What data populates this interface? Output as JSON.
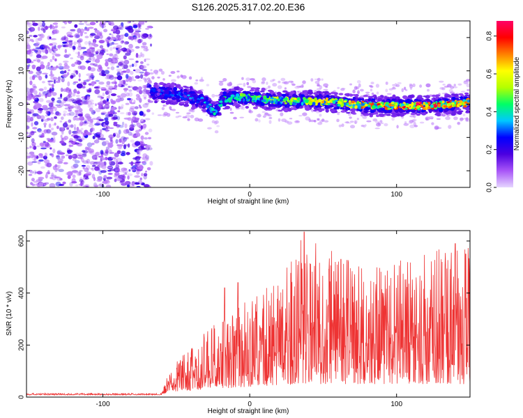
{
  "title": "S126.2025.317.02.20.E36",
  "chart_data": [
    {
      "type": "heatmap",
      "xlabel": "Height of straight line (km)",
      "ylabel": "Frequency (Hz)",
      "xlim": [
        -152,
        150
      ],
      "ylim": [
        -25,
        25
      ],
      "xticks": [
        -100,
        0,
        100
      ],
      "yticks": [
        20,
        10,
        0,
        -10,
        -20
      ],
      "colorbar": {
        "label": "Normalized spectral amplitude",
        "range": [
          0.0,
          0.88
        ],
        "ticks": [
          0.0,
          0.2,
          0.4,
          0.6,
          0.8
        ],
        "tick_labels": [
          "0.0",
          "0.2",
          "0.4",
          "0.6",
          "0.8"
        ],
        "colormap": [
          "#e6d6ff",
          "#a855f7",
          "#4b00e0",
          "#0000ff",
          "#00c8ff",
          "#00ff66",
          "#b4ff00",
          "#ffff00",
          "#ff8000",
          "#ff0000",
          "#ff0066"
        ]
      },
      "noise_region": {
        "x_range": [
          -152,
          -67
        ],
        "freq_range": [
          -25,
          25
        ],
        "amplitude_range": [
          0.05,
          0.25
        ]
      },
      "signal_track": {
        "x_range": [
          -67,
          150
        ],
        "freq_points": [
          [
            -67,
            3.5
          ],
          [
            -50,
            3.0
          ],
          [
            -40,
            2.0
          ],
          [
            -30,
            0.5
          ],
          [
            -24,
            -2.5
          ],
          [
            -18,
            1.5
          ],
          [
            -10,
            2.0
          ],
          [
            0,
            2.0
          ],
          [
            20,
            1.0
          ],
          [
            40,
            1.0
          ],
          [
            60,
            0.5
          ],
          [
            80,
            -0.5
          ],
          [
            100,
            -0.5
          ],
          [
            120,
            -0.5
          ],
          [
            140,
            0.0
          ],
          [
            150,
            0.5
          ]
        ],
        "amplitude_points": [
          [
            -67,
            0.25
          ],
          [
            -40,
            0.3
          ],
          [
            0,
            0.45
          ],
          [
            40,
            0.6
          ],
          [
            80,
            0.65
          ],
          [
            120,
            0.75
          ],
          [
            150,
            0.6
          ]
        ],
        "width_hz": 3.0
      }
    },
    {
      "type": "line",
      "xlabel": "Height of straight line (km)",
      "ylabel": "SNR (10 * v/v)",
      "xlim": [
        -152,
        150
      ],
      "ylim": [
        0,
        640
      ],
      "xticks": [
        -100,
        0,
        100
      ],
      "yticks": [
        0,
        200,
        400,
        600
      ],
      "color": "#ee3333",
      "series": [
        {
          "name": "SNR",
          "envelope": [
            [
              -152,
              15
            ],
            [
              -60,
              15
            ],
            [
              -55,
              100
            ],
            [
              -40,
              200
            ],
            [
              -20,
              300
            ],
            [
              0,
              380
            ],
            [
              20,
              450
            ],
            [
              37,
              640
            ],
            [
              60,
              550
            ],
            [
              90,
              500
            ],
            [
              120,
              560
            ],
            [
              150,
              600
            ]
          ],
          "baseline": [
            [
              -152,
              8
            ],
            [
              -60,
              8
            ],
            [
              -55,
              20
            ],
            [
              0,
              40
            ],
            [
              40,
              50
            ],
            [
              150,
              50
            ]
          ],
          "peaks": [
            [
              -17,
              420
            ],
            [
              -8,
              440
            ],
            [
              37,
              635
            ],
            [
              62,
              530
            ],
            [
              140,
              590
            ],
            [
              147,
              550
            ]
          ]
        }
      ]
    }
  ]
}
